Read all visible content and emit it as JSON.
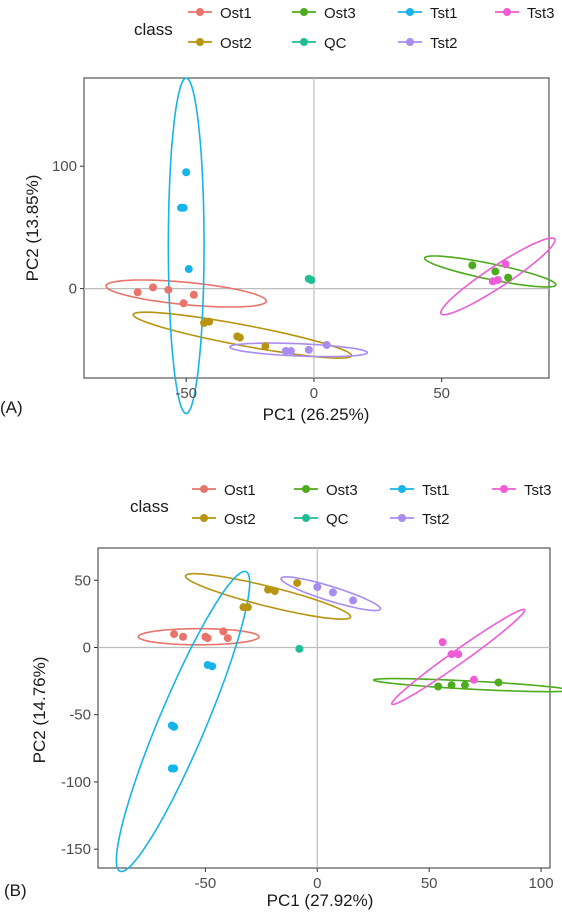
{
  "panels": [
    {
      "label": "(A)",
      "legend": {
        "title": "class",
        "entries": [
          {
            "name": "Ost1",
            "color": "#E8746C"
          },
          {
            "name": "Ost3",
            "color": "#4EAB1E"
          },
          {
            "name": "Tst1",
            "color": "#16B4E8"
          },
          {
            "name": "Tst3",
            "color": "#EE5CD6"
          },
          {
            "name": "Ost2",
            "color": "#B8940F"
          },
          {
            "name": "QC",
            "color": "#1FBE96"
          },
          {
            "name": "Tst2",
            "color": "#A98CF0"
          }
        ]
      }
    },
    {
      "label": "(B)",
      "legend": {
        "title": "class",
        "entries": [
          {
            "name": "Ost1",
            "color": "#E8746C"
          },
          {
            "name": "Ost3",
            "color": "#4EAB1E"
          },
          {
            "name": "Tst1",
            "color": "#16B4E8"
          },
          {
            "name": "Tst3",
            "color": "#EE5CD6"
          },
          {
            "name": "Ost2",
            "color": "#B8940F"
          },
          {
            "name": "QC",
            "color": "#1FBE96"
          },
          {
            "name": "Tst2",
            "color": "#A98CF0"
          }
        ]
      }
    }
  ],
  "chart_data": [
    {
      "type": "scatter",
      "xlabel": "PC1 (26.25%)",
      "ylabel": "PC2 (13.85%)",
      "xlim": [
        -90,
        92
      ],
      "ylim": [
        -73,
        172
      ],
      "xticks": [
        -50,
        0,
        50
      ],
      "yticks": [
        0,
        100
      ],
      "xtick_labels": [
        "-50",
        "0",
        "50"
      ],
      "ytick_labels": [
        "0",
        "100"
      ],
      "grid": false,
      "zero_lines": true,
      "legend_position": "top",
      "series": [
        {
          "name": "Ost1",
          "color": "#E8746C",
          "points": [
            [
              -69,
              -3
            ],
            [
              -63,
              1
            ],
            [
              -57,
              -1
            ],
            [
              -51,
              -12
            ],
            [
              -47,
              -5
            ]
          ],
          "ellipse": {
            "center": [
              -50,
              -4
            ],
            "semi_major": 32,
            "semi_minor": 9,
            "angle_deg": -12
          }
        },
        {
          "name": "Ost2",
          "color": "#B8940F",
          "points": [
            [
              -43,
              -28
            ],
            [
              -41,
              -27
            ],
            [
              -30,
              -39
            ],
            [
              -29,
              -40
            ],
            [
              -19,
              -47
            ]
          ],
          "ellipse": {
            "center": [
              -28,
              -38
            ],
            "semi_major": 46,
            "semi_minor": 8,
            "angle_deg": -22
          }
        },
        {
          "name": "Ost3",
          "color": "#4EAB1E",
          "points": [
            [
              62,
              19
            ],
            [
              71,
              14
            ],
            [
              76,
              9
            ]
          ],
          "ellipse": {
            "center": [
              69,
              14
            ],
            "semi_major": 28,
            "semi_minor": 6,
            "angle_deg": -24
          }
        },
        {
          "name": "QC",
          "color": "#1FBE96",
          "points": [
            [
              -2,
              8
            ],
            [
              -1,
              7
            ]
          ],
          "ellipse": null
        },
        {
          "name": "Tst1",
          "color": "#16B4E8",
          "points": [
            [
              -50,
              95
            ],
            [
              -51,
              66
            ],
            [
              -52,
              66
            ],
            [
              -49,
              16
            ]
          ],
          "ellipse": {
            "center": [
              -50,
              35
            ],
            "semi_major": 137,
            "semi_minor": 7,
            "angle_deg": 90
          }
        },
        {
          "name": "Tst2",
          "color": "#A98CF0",
          "points": [
            [
              -11,
              -51
            ],
            [
              -9,
              -51
            ],
            [
              -2,
              -50
            ],
            [
              5,
              -46
            ]
          ],
          "ellipse": {
            "center": [
              -6,
              -50
            ],
            "semi_major": 27,
            "semi_minor": 5,
            "angle_deg": -5
          }
        },
        {
          "name": "Tst3",
          "color": "#EE5CD6",
          "points": [
            [
              70,
              6
            ],
            [
              72,
              7
            ],
            [
              75,
              20
            ]
          ],
          "ellipse": {
            "center": [
              72,
              10
            ],
            "semi_major": 38,
            "semi_minor": 6,
            "angle_deg": 55
          }
        }
      ]
    },
    {
      "type": "scatter",
      "xlabel": "PC1 (27.92%)",
      "ylabel": "PC2 (14.76%)",
      "xlim": [
        -98,
        104
      ],
      "ylim": [
        -164,
        74
      ],
      "xticks": [
        -50,
        0,
        50,
        100
      ],
      "yticks": [
        -150,
        -100,
        -50,
        0,
        50
      ],
      "xtick_labels": [
        "-50",
        "0",
        "50",
        "100"
      ],
      "ytick_labels": [
        "-150",
        "-100",
        "-50",
        "0",
        "50"
      ],
      "grid": false,
      "zero_lines": true,
      "legend_position": "top",
      "series": [
        {
          "name": "Ost1",
          "color": "#E8746C",
          "points": [
            [
              -64,
              10
            ],
            [
              -60,
              8
            ],
            [
              -50,
              8
            ],
            [
              -49,
              7
            ],
            [
              -42,
              12
            ],
            [
              -40,
              7
            ]
          ],
          "ellipse": {
            "center": [
              -53,
              8
            ],
            "semi_major": 27,
            "semi_minor": 6,
            "angle_deg": 0
          }
        },
        {
          "name": "Ost2",
          "color": "#B8940F",
          "points": [
            [
              -33,
              30
            ],
            [
              -31,
              30
            ],
            [
              -22,
              43
            ],
            [
              -19,
              42
            ],
            [
              -9,
              48
            ]
          ],
          "ellipse": {
            "center": [
              -22,
              38
            ],
            "semi_major": 40,
            "semi_minor": 7,
            "angle_deg": -23
          }
        },
        {
          "name": "Ost3",
          "color": "#4EAB1E",
          "points": [
            [
              54,
              -29
            ],
            [
              60,
              -28
            ],
            [
              66,
              -28
            ],
            [
              81,
              -26
            ]
          ],
          "ellipse": {
            "center": [
              69,
              -28
            ],
            "semi_major": 44,
            "semi_minor": 3,
            "angle_deg": -5
          }
        },
        {
          "name": "QC",
          "color": "#1FBE96",
          "points": [
            [
              -8,
              -1
            ]
          ],
          "ellipse": null
        },
        {
          "name": "Tst1",
          "color": "#16B4E8",
          "points": [
            [
              -49,
              -13
            ],
            [
              -47,
              -14
            ],
            [
              -65,
              -58
            ],
            [
              -64,
              -59
            ],
            [
              -65,
              -90
            ],
            [
              -64,
              -90
            ]
          ],
          "ellipse": {
            "center": [
              -60,
              -55
            ],
            "semi_major": 115,
            "semi_minor": 11,
            "angle_deg": 76
          }
        },
        {
          "name": "Tst2",
          "color": "#A98CF0",
          "points": [
            [
              0,
              45
            ],
            [
              7,
              41
            ],
            [
              16,
              35
            ]
          ],
          "ellipse": {
            "center": [
              6,
              40
            ],
            "semi_major": 25,
            "semi_minor": 5,
            "angle_deg": -28
          }
        },
        {
          "name": "Tst3",
          "color": "#EE5CD6",
          "points": [
            [
              56,
              4
            ],
            [
              60,
              -5
            ],
            [
              63,
              -5
            ],
            [
              70,
              -24
            ]
          ],
          "ellipse": {
            "center": [
              63,
              -7
            ],
            "semi_major": 46,
            "semi_minor": 4,
            "angle_deg": 50
          }
        }
      ]
    }
  ]
}
